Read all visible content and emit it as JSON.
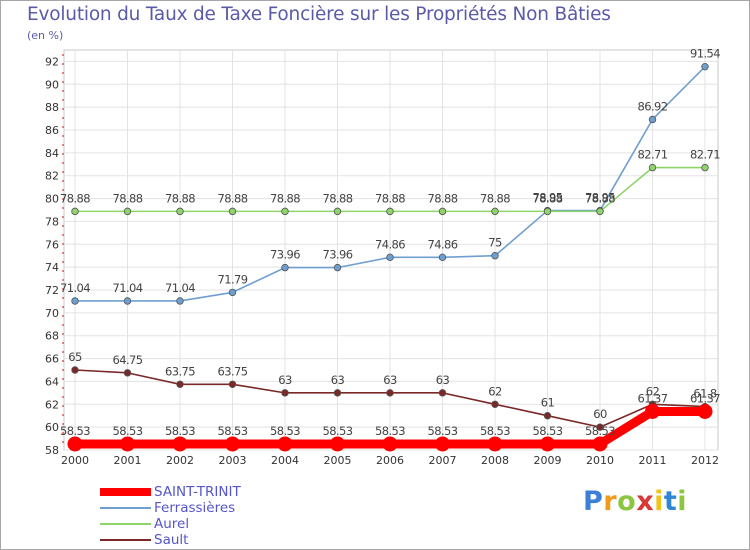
{
  "chart_data": {
    "type": "line",
    "title": "Evolution du Taux de Taxe Foncière sur les Propriétés Non Bâties",
    "ylabel": "(en %)",
    "xlabel": "",
    "categories": [
      "2000",
      "2001",
      "2002",
      "2003",
      "2004",
      "2005",
      "2006",
      "2007",
      "2008",
      "2009",
      "2010",
      "2011",
      "2012"
    ],
    "ylim": [
      58,
      93
    ],
    "yticks": [
      58,
      60,
      62,
      64,
      66,
      68,
      70,
      72,
      74,
      76,
      78,
      80,
      82,
      84,
      86,
      88,
      90,
      92
    ],
    "series": [
      {
        "name": "Sault",
        "color": "#7a2828",
        "values": [
          65,
          64.75,
          63.75,
          63.75,
          63,
          63,
          63,
          63,
          62,
          61,
          60,
          62,
          61.8
        ],
        "labels": [
          "65",
          "64.75",
          "63.75",
          "63.75",
          "63",
          "63",
          "63",
          "63",
          "62",
          "61",
          "60",
          "62",
          "61.8"
        ]
      },
      {
        "name": "Ferrassières",
        "color": "#6f9fd0",
        "values": [
          71.04,
          71.04,
          71.04,
          71.79,
          73.96,
          73.96,
          74.86,
          74.86,
          75,
          78.95,
          78.95,
          86.92,
          91.54
        ],
        "labels": [
          "71.04",
          "71.04",
          "71.04",
          "71.79",
          "73.96",
          "73.96",
          "74.86",
          "74.86",
          "75",
          "78.95",
          "78.95",
          "86.92",
          "91.54"
        ]
      },
      {
        "name": "Aurel",
        "color": "#8fd46a",
        "values": [
          78.88,
          78.88,
          78.88,
          78.88,
          78.88,
          78.88,
          78.88,
          78.88,
          78.88,
          78.88,
          78.88,
          82.71,
          82.71
        ],
        "labels": [
          "78.88",
          "78.88",
          "78.88",
          "78.88",
          "78.88",
          "78.88",
          "78.88",
          "78.88",
          "78.88",
          "78.88",
          "78.88",
          "82.71",
          "82.71"
        ]
      },
      {
        "name": "SAINT-TRINIT",
        "color": "#ff0000",
        "values": [
          58.53,
          58.53,
          58.53,
          58.53,
          58.53,
          58.53,
          58.53,
          58.53,
          58.53,
          58.53,
          58.53,
          61.37,
          61.37
        ],
        "labels": [
          "58.53",
          "58.53",
          "58.53",
          "58.53",
          "58.53",
          "58.53",
          "58.53",
          "58.53",
          "58.53",
          "58.53",
          "58.53",
          "61.37",
          "61.37"
        ]
      }
    ],
    "legend": [
      {
        "name": "SAINT-TRINIT",
        "color": "#ff0000"
      },
      {
        "name": "Ferrassières",
        "color": "#6f9fd0"
      },
      {
        "name": "Aurel",
        "color": "#8fd46a"
      },
      {
        "name": "Sault",
        "color": "#7a2828"
      }
    ],
    "legend_position": "bottom-left",
    "grid": true
  },
  "brand": {
    "letters": [
      "P",
      "r",
      "o",
      "x",
      "i",
      "t",
      "i"
    ],
    "colors": [
      "#3b7fd6",
      "#f29a1a",
      "#8cc63f",
      "#d93636",
      "#f2c41a",
      "#2f86d6",
      "#8cc63f"
    ]
  }
}
